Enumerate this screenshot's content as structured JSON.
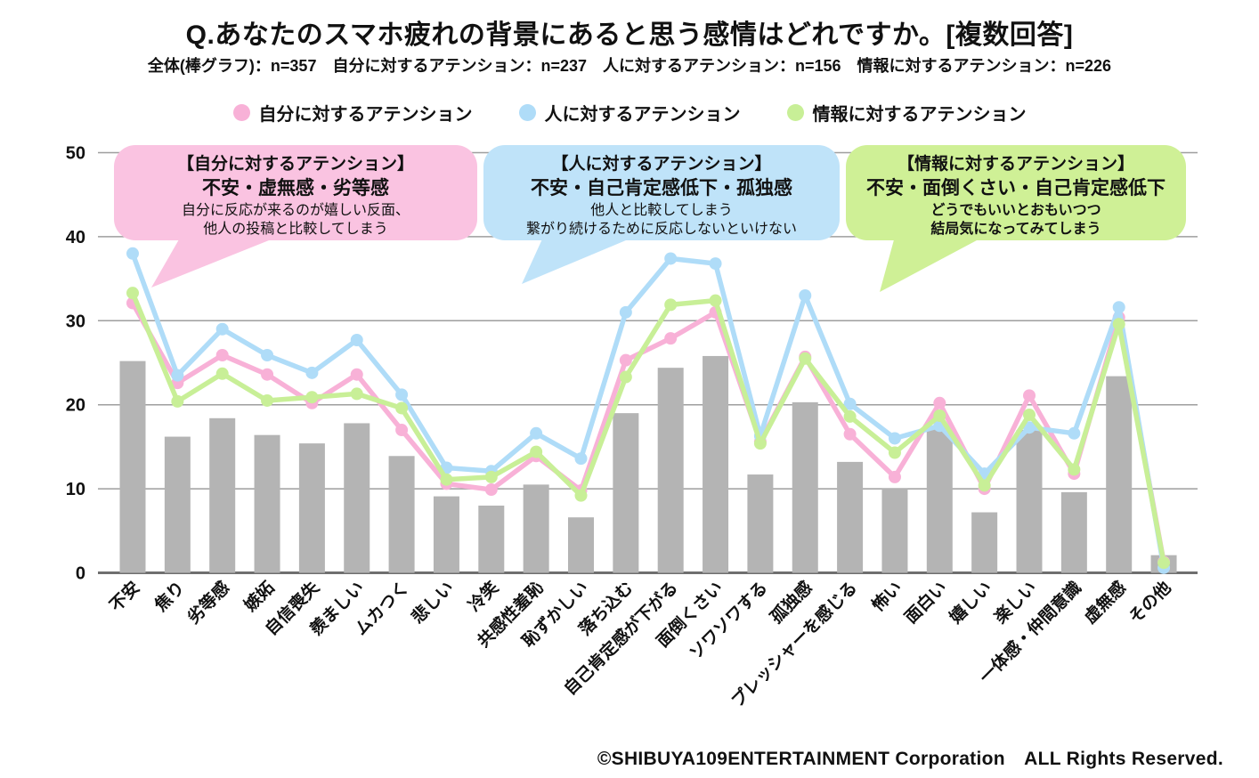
{
  "title": "Q.あなたのスマホ疲れの背景にあると思う感情はどれですか。[複数回答]",
  "subtitle": "全体(棒グラフ)：n=357　自分に対するアテンション：n=237　人に対するアテンション：n=156　情報に対するアテンション：n=226",
  "legend": [
    {
      "label": "自分に対するアテンション",
      "color": "#f8b1d7"
    },
    {
      "label": "人に対するアテンション",
      "color": "#afdcf8"
    },
    {
      "label": "情報に対するアテンション",
      "color": "#c8ef97"
    }
  ],
  "callouts": [
    {
      "color": "#fac3e1",
      "title": "【自分に対するアテンション】",
      "emphasis": "不安・虚無感・劣等感",
      "body": [
        "自分に反応が来るのが嬉しい反面、",
        "他人の投稿と比較してしまう"
      ]
    },
    {
      "color": "#bfe3f9",
      "title": "【人に対するアテンション】",
      "emphasis": "不安・自己肯定感低下・孤独感",
      "body": [
        "他人と比較してしまう",
        "繋がり続けるために反応しないといけない"
      ]
    },
    {
      "color": "#cff096",
      "title": "【情報に対するアテンション】",
      "emphasis": "不安・面倒くさい・自己肯定感低下",
      "body": [
        "どうでもいいとおもいつつ",
        "結局気になってみてしまう"
      ]
    }
  ],
  "footer": "©SHIBUYA109ENTERTAINMENT Corporation　ALL Rights Reserved.",
  "chart_data": {
    "type": "bar",
    "subtype": "bar-with-lines",
    "categories": [
      "不安",
      "焦り",
      "劣等感",
      "嫉妬",
      "自信喪失",
      "羨ましい",
      "ムカつく",
      "悲しい",
      "冷笑",
      "共感性羞恥",
      "恥ずかしい",
      "落ち込む",
      "自己肯定感が下がる",
      "面倒くさい",
      "ソワソワする",
      "孤独感",
      "プレッシャーを感じる",
      "怖い",
      "面白い",
      "嬉しい",
      "楽しい",
      "一体感・仲間意識",
      "虚無感",
      "その他"
    ],
    "bar_series": {
      "name": "全体(棒グラフ)",
      "n": 357,
      "color": "#b4b4b4",
      "values": [
        25.2,
        16.2,
        18.4,
        16.4,
        15.4,
        17.8,
        13.9,
        9.1,
        8.0,
        10.5,
        6.6,
        19.0,
        24.4,
        25.8,
        11.7,
        20.3,
        13.2,
        10.0,
        17.3,
        7.2,
        17.0,
        9.6,
        23.4,
        2.1
      ]
    },
    "line_series": [
      {
        "name": "自分に対するアテンション",
        "n": 237,
        "color": "#f8b1d7",
        "values": [
          32.1,
          22.6,
          25.9,
          23.6,
          20.2,
          23.6,
          17.0,
          10.6,
          9.9,
          13.9,
          9.8,
          25.3,
          27.9,
          31.0,
          15.6,
          25.7,
          16.5,
          11.4,
          20.2,
          10.0,
          21.1,
          11.8,
          30.4,
          1.3
        ]
      },
      {
        "name": "人に対するアテンション",
        "n": 156,
        "color": "#afdcf8",
        "values": [
          38.0,
          23.5,
          29.0,
          25.9,
          23.8,
          27.7,
          21.2,
          12.5,
          12.1,
          16.6,
          13.6,
          31.0,
          37.4,
          36.8,
          16.3,
          33.0,
          20.1,
          16.0,
          17.5,
          11.8,
          17.3,
          16.6,
          31.6,
          0.6
        ]
      },
      {
        "name": "情報に対するアテンション",
        "n": 226,
        "color": "#c8ef97",
        "values": [
          33.3,
          20.4,
          23.7,
          20.5,
          20.9,
          21.3,
          19.6,
          11.1,
          11.4,
          14.4,
          9.2,
          23.3,
          31.9,
          32.4,
          15.4,
          25.5,
          18.6,
          14.3,
          18.7,
          10.4,
          18.8,
          12.3,
          29.6,
          1.2
        ]
      }
    ],
    "ylim": [
      0,
      50
    ],
    "yticks": [
      0,
      10,
      20,
      30,
      40,
      50
    ],
    "grid": true,
    "legend_position": "top",
    "xlabel": "",
    "ylabel": ""
  }
}
